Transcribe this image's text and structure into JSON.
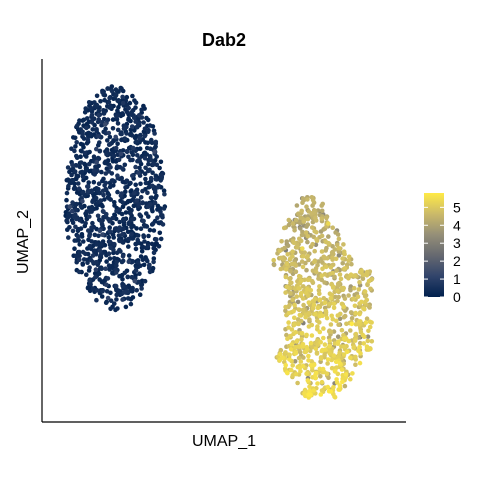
{
  "chart_data": {
    "type": "scatter",
    "title": "Dab2",
    "xlabel": "UMAP_1",
    "ylabel": "UMAP_2",
    "grid": false,
    "axis_ticks_shown": false,
    "color_scale": {
      "name": "cividis",
      "min": 0,
      "max": 5.8,
      "stops": [
        "#00204D",
        "#31446B",
        "#666970",
        "#958F78",
        "#CBBA69",
        "#FFEA46"
      ],
      "tick_values": [
        0,
        1,
        2,
        3,
        4,
        5
      ],
      "tick_labels": [
        "0",
        "1",
        "2",
        "3",
        "4",
        "5"
      ],
      "legend_position": "right"
    },
    "clusters": [
      {
        "shape": "left oval cluster",
        "expression_range": [
          0,
          1
        ],
        "typical_expression": 0.1,
        "approx_point_count": 1100
      },
      {
        "shape": "lower-right cluster",
        "expression_range": [
          3,
          5.8
        ],
        "typical_expression": 4.8,
        "approx_point_count": 900
      }
    ]
  }
}
